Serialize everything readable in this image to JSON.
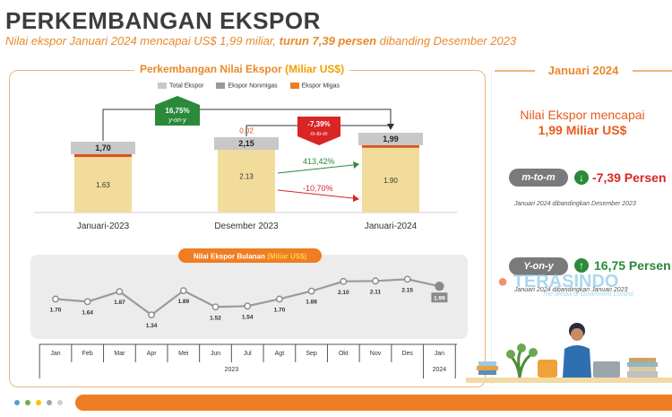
{
  "header": {
    "title": "PERKEMBANGAN EKSPOR",
    "subtitle_pre": "Nilai ekspor Januari 2024 mencapai US$ 1,99 miliar, ",
    "subtitle_bold": "turun 7,39 persen",
    "subtitle_post": " dibanding Desember 2023"
  },
  "panel": {
    "title": "Perkembangan Nilai Ekspor ",
    "title_unit": "(Miliar US$)"
  },
  "legend": {
    "total": "Total Ekspor",
    "nonmigas": "Ekspor Nonmigas",
    "migas": "Ekspor Migas"
  },
  "colors": {
    "orange": "#ef7d22",
    "nonmigas_bar": "#f2dc9c",
    "migas_bar": "#d9541e",
    "gray_box": "#c8c8c8",
    "red": "#d92525",
    "green": "#2a8a3a"
  },
  "chart_data": [
    {
      "type": "bar",
      "title": "Perkembangan Nilai Ekspor (Miliar US$)",
      "categories": [
        "Januari-2023",
        "Desember 2023",
        "Januari-2024"
      ],
      "series": [
        {
          "name": "Ekspor Nonmigas",
          "values": [
            1.63,
            2.13,
            1.9
          ]
        },
        {
          "name": "Ekspor Migas",
          "values": [
            0.08,
            0.02,
            0.09
          ]
        },
        {
          "name": "Total Ekspor",
          "values": [
            1.7,
            2.15,
            1.99
          ]
        }
      ],
      "labels": {
        "nonmigas": [
          "1.63",
          "2.13",
          "1.90"
        ],
        "migas": [
          "0.08",
          "0.02",
          "0.09"
        ],
        "total": [
          "1,70",
          "2,15",
          "1,99"
        ]
      },
      "annotations": {
        "yoy_value": "16,75%",
        "yoy_label": "y-on-y",
        "mtm_value": "-7,39%",
        "mtm_label": "m-to-m",
        "migas_change": "413,42%",
        "nonmigas_change": "-10,70%"
      }
    },
    {
      "type": "line",
      "title": "Nilai Ekspor Bulanan (Miliar US$)",
      "title_main": "Nilai Ekspor Bulanan ",
      "title_unit": "(Miliar US$)",
      "x": [
        "Jan",
        "Feb",
        "Mar",
        "Apr",
        "Mei",
        "Jun",
        "Jul",
        "Agt",
        "Sep",
        "Okt",
        "Nov",
        "Des",
        "Jan"
      ],
      "values": [
        1.7,
        1.64,
        1.87,
        1.34,
        1.89,
        1.52,
        1.54,
        1.7,
        1.88,
        2.1,
        2.11,
        2.15,
        1.99
      ],
      "value_labels": [
        "1.70",
        "1.64",
        "1.87",
        "1.34",
        "1.89",
        "1.52",
        "1.54",
        "1.70",
        "1.88",
        "2.10",
        "2.11",
        "2.15",
        "1.99"
      ],
      "years": [
        "2023",
        "2024"
      ]
    }
  ],
  "right": {
    "head": "Januari 2024",
    "main_line1": "Nilai Ekspor mencapai",
    "main_line2": "1,99 Miliar US$",
    "mtm_pill": "m-to-m",
    "mtm_value": "-7,39 Persen",
    "mtm_note": "Januari 2024 dibandingkan Desember 2023",
    "yoy_pill": "Y-on-y",
    "yoy_value": "16,75 Persen",
    "yoy_note": "Januari 2024 dibandingkan Januari 2023"
  },
  "watermark": {
    "name": "TERASINDO",
    "tag": "The Media of Goverment Control"
  }
}
